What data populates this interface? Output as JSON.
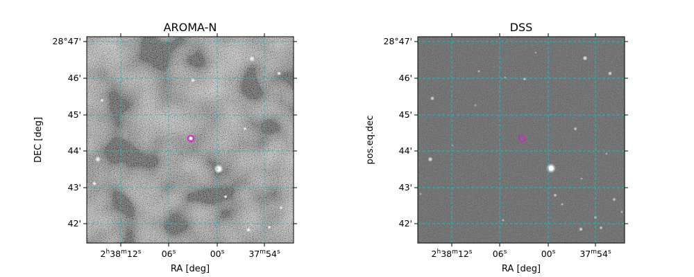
{
  "figure": {
    "panels": [
      {
        "title": "AROMA-N",
        "xlabel": "RA [deg]",
        "ylabel": "DEC [deg]",
        "x_ticks": [
          {
            "h": "2",
            "m": "38",
            "s": "12"
          },
          {
            "s": "06"
          },
          {
            "s": "00"
          },
          {
            "m": "37",
            "s": "54"
          }
        ],
        "y_ticks": [
          "28°47'",
          "46'",
          "45'",
          "44'",
          "43'",
          "42'"
        ],
        "image_style": "noisy-grayscale",
        "grid_color": "#2fb8b8",
        "marker_color": "#d81ed8"
      },
      {
        "title": "DSS",
        "xlabel": "RA [deg]",
        "ylabel": "pos.eq.dec",
        "x_ticks": [
          {
            "h": "2",
            "m": "38",
            "s": "12"
          },
          {
            "s": "06"
          },
          {
            "s": "00"
          },
          {
            "m": "37",
            "s": "54"
          }
        ],
        "y_ticks": [
          "28°47'",
          "46'",
          "45'",
          "44'",
          "43'",
          "42'"
        ],
        "image_style": "dark-starfield",
        "grid_color": "#00c8d0",
        "marker_color": "#d81ed8"
      }
    ]
  }
}
